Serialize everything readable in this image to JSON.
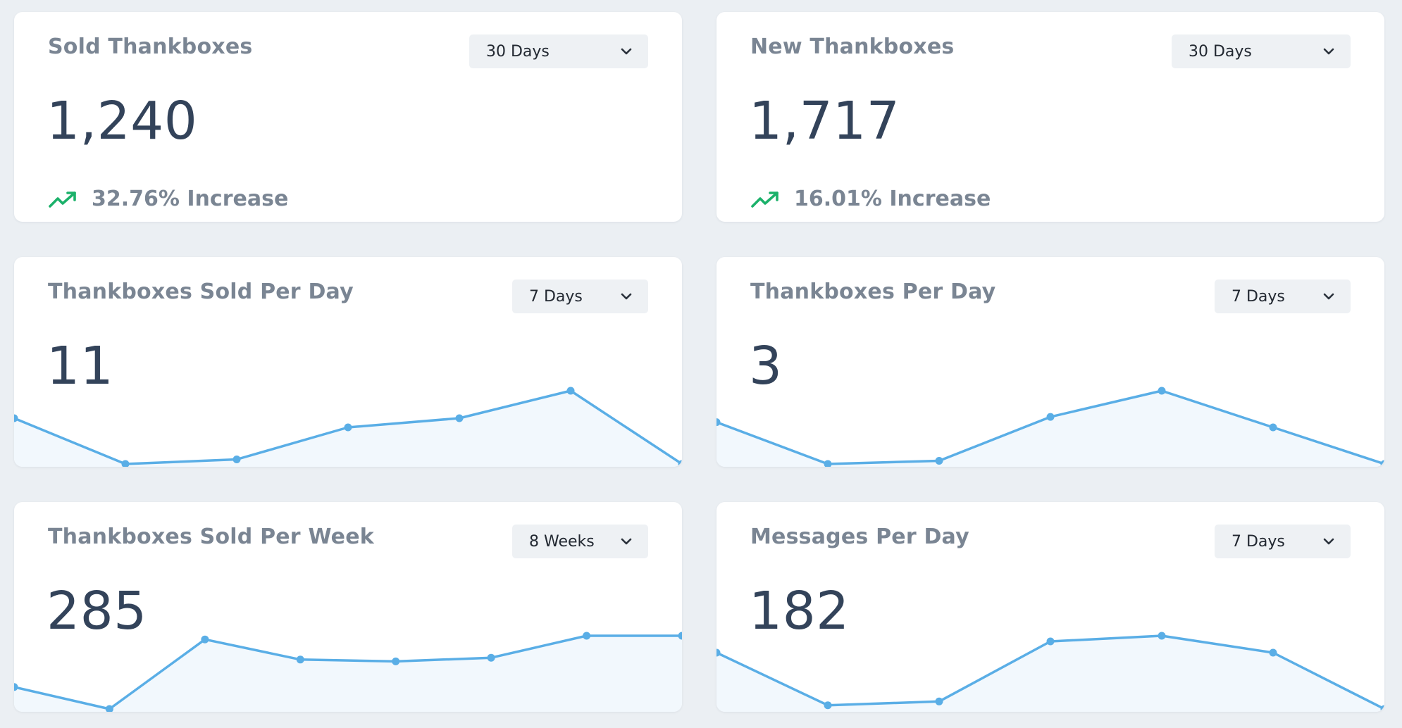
{
  "colors": {
    "background": "#ebeff3",
    "card": "#ffffff",
    "title": "#7a8593",
    "value": "#33435a",
    "accent_line": "#5aaee6",
    "accent_fill": "#f2f8fd",
    "trend_up": "#1bb16a"
  },
  "cards": [
    {
      "title": "Sold Thankboxes",
      "range": "30 Days",
      "value": "1,240",
      "trend": {
        "icon": "trending-up-icon",
        "text": "32.76% Increase"
      }
    },
    {
      "title": "New Thankboxes",
      "range": "30 Days",
      "value": "1,717",
      "trend": {
        "icon": "trending-up-icon",
        "text": "16.01% Increase"
      }
    },
    {
      "title": "Thankboxes Sold Per Day",
      "range": "7 Days",
      "value": "11",
      "spark": [
        14,
        9,
        9.5,
        13,
        14,
        17,
        9
      ]
    },
    {
      "title": "Thankboxes Per Day",
      "range": "7 Days",
      "value": "3",
      "spark": [
        13,
        9,
        9.3,
        13.5,
        16,
        12.5,
        9
      ]
    },
    {
      "title": "Thankboxes Sold Per Week",
      "range": "8 Weeks",
      "value": "285",
      "spark": [
        38,
        32,
        51,
        45.5,
        45,
        46,
        52,
        52
      ]
    },
    {
      "title": "Messages Per Day",
      "range": "7 Days",
      "value": "182",
      "spark": [
        52,
        38,
        39,
        55,
        56.5,
        52,
        37
      ]
    }
  ]
}
